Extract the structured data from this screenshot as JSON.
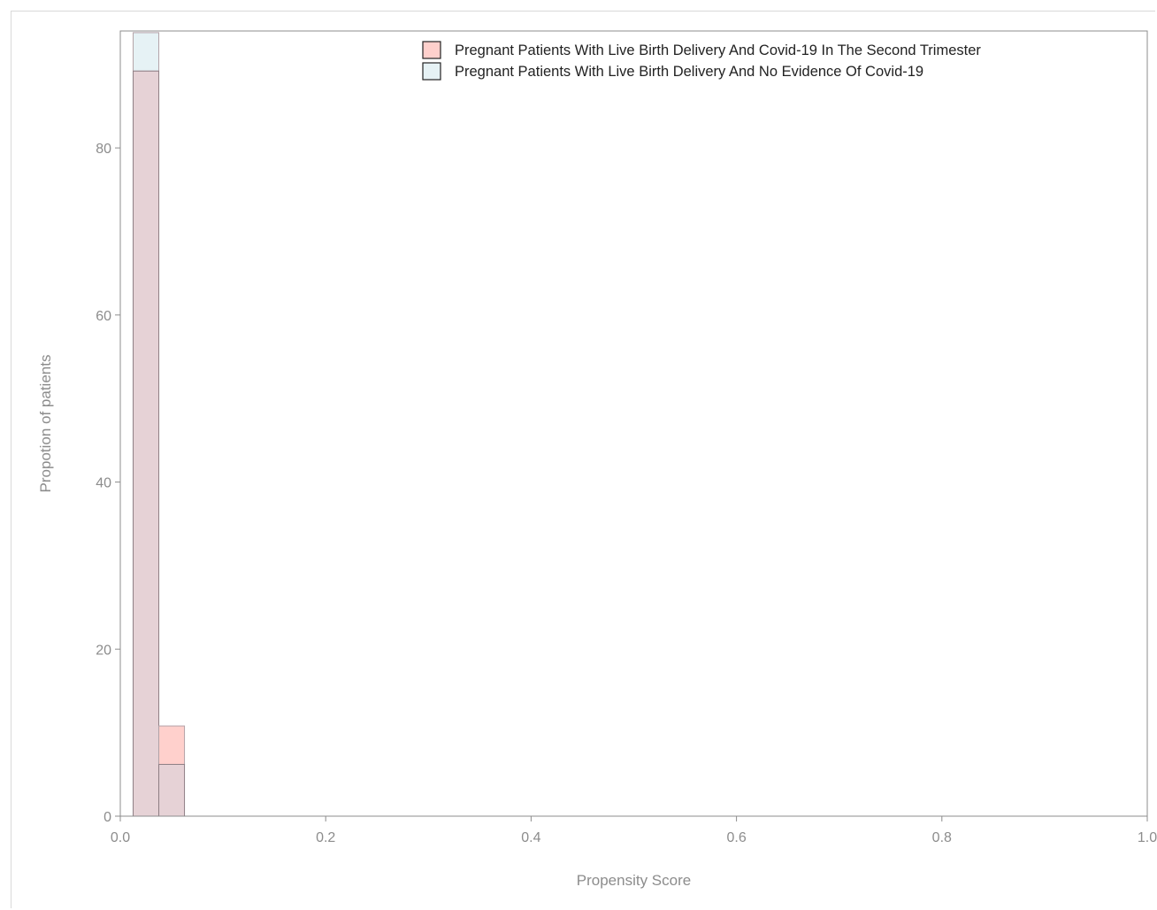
{
  "chart_data": {
    "type": "histogram",
    "title": "",
    "xlabel": "Propensity Score",
    "ylabel": "Propotion of patients",
    "xlim": [
      0.0,
      1.0
    ],
    "ylim": [
      0,
      94
    ],
    "x_ticks": [
      "0.0",
      "0.2",
      "0.4",
      "0.6",
      "0.8",
      "1.0"
    ],
    "y_ticks": [
      "0",
      "20",
      "40",
      "60",
      "80"
    ],
    "bin_edges": [
      0.0,
      0.0125,
      0.0375,
      0.0625
    ],
    "legend_position": "top-right",
    "grid": false,
    "series": [
      {
        "name": "Pregnant Patients With Live Birth Delivery And Covid-19 In The Second Trimester",
        "color": "#ffd0cc",
        "values": [
          0,
          89.2,
          10.8
        ]
      },
      {
        "name": "Pregnant Patients With Live Birth Delivery And No Evidence Of Covid-19",
        "color": "#e6f2f5",
        "values": [
          0,
          93.8,
          6.2
        ]
      }
    ],
    "overlap_color": "#e6d2d6"
  }
}
